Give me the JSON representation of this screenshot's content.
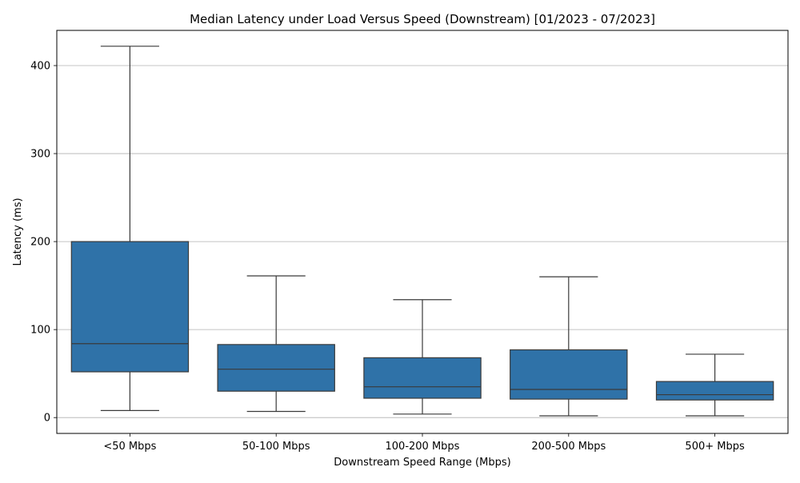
{
  "chart_data": {
    "type": "box",
    "title": "Median Latency under Load Versus Speed (Downstream) [01/2023 - 07/2023]",
    "xlabel": "Downstream Speed Range (Mbps)",
    "ylabel": "Latency (ms)",
    "ylim": [
      -18,
      440
    ],
    "yticks": [
      0,
      100,
      200,
      300,
      400
    ],
    "grid": "y",
    "box_color": "#2f72a8",
    "line_color": "#3a3a3a",
    "categories": [
      "<50 Mbps",
      "50-100 Mbps",
      "100-200 Mbps",
      "200-500 Mbps",
      "500+ Mbps"
    ],
    "boxes": [
      {
        "whisker_low": 8,
        "q1": 52,
        "median": 84,
        "q3": 200,
        "whisker_high": 422
      },
      {
        "whisker_low": 7,
        "q1": 30,
        "median": 55,
        "q3": 83,
        "whisker_high": 161
      },
      {
        "whisker_low": 4,
        "q1": 22,
        "median": 35,
        "q3": 68,
        "whisker_high": 134
      },
      {
        "whisker_low": 2,
        "q1": 21,
        "median": 32,
        "q3": 77,
        "whisker_high": 160
      },
      {
        "whisker_low": 2,
        "q1": 20,
        "median": 26,
        "q3": 41,
        "whisker_high": 72
      }
    ]
  }
}
